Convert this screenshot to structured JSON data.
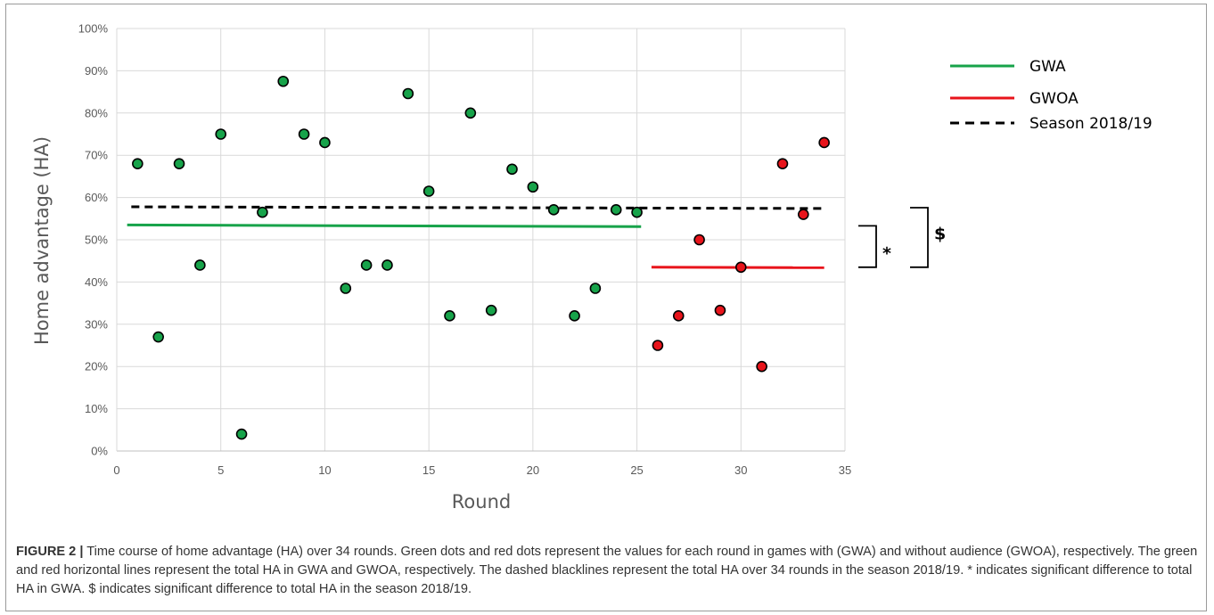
{
  "chart_data": {
    "type": "scatter",
    "xlabel": "Round",
    "ylabel": "Home advantage (HA)",
    "xlim": [
      0,
      35
    ],
    "ylim": [
      0,
      100
    ],
    "x_ticks": [
      0,
      5,
      10,
      15,
      20,
      25,
      30,
      35
    ],
    "y_ticks": [
      "0%",
      "10%",
      "20%",
      "30%",
      "40%",
      "50%",
      "60%",
      "70%",
      "80%",
      "90%",
      "100%"
    ],
    "y_tick_values": [
      0,
      10,
      20,
      30,
      40,
      50,
      60,
      70,
      80,
      90,
      100
    ],
    "grid": "vertical and horizontal",
    "legend_position": "top-right",
    "series": [
      {
        "name": "GWA",
        "color": "#17a34a",
        "points": [
          {
            "x": 1,
            "y": 68
          },
          {
            "x": 2,
            "y": 27
          },
          {
            "x": 3,
            "y": 68
          },
          {
            "x": 4,
            "y": 44
          },
          {
            "x": 5,
            "y": 75
          },
          {
            "x": 6,
            "y": 4
          },
          {
            "x": 7,
            "y": 56.5
          },
          {
            "x": 8,
            "y": 87.5
          },
          {
            "x": 9,
            "y": 75
          },
          {
            "x": 10,
            "y": 73
          },
          {
            "x": 11,
            "y": 38.5
          },
          {
            "x": 12,
            "y": 44
          },
          {
            "x": 13,
            "y": 44
          },
          {
            "x": 14,
            "y": 84.6
          },
          {
            "x": 15,
            "y": 61.5
          },
          {
            "x": 16,
            "y": 32
          },
          {
            "x": 17,
            "y": 80
          },
          {
            "x": 18,
            "y": 33.3
          },
          {
            "x": 19,
            "y": 66.7
          },
          {
            "x": 20,
            "y": 62.5
          },
          {
            "x": 21,
            "y": 57.1
          },
          {
            "x": 22,
            "y": 32
          },
          {
            "x": 23,
            "y": 38.5
          },
          {
            "x": 24,
            "y": 57.1
          },
          {
            "x": 25,
            "y": 56.5
          }
        ]
      },
      {
        "name": "GWOA",
        "color": "#e8141b",
        "points": [
          {
            "x": 26,
            "y": 25
          },
          {
            "x": 27,
            "y": 32
          },
          {
            "x": 28,
            "y": 50
          },
          {
            "x": 29,
            "y": 33.3
          },
          {
            "x": 30,
            "y": 43.5
          },
          {
            "x": 31,
            "y": 20
          },
          {
            "x": 32,
            "y": 68
          },
          {
            "x": 33,
            "y": 56
          },
          {
            "x": 34,
            "y": 73
          }
        ]
      }
    ],
    "reference_lines": [
      {
        "name": "GWA",
        "style": "solid",
        "color": "#17a34a",
        "x_start": 0.5,
        "x_end": 25.2,
        "y_start": 53.5,
        "y_end": 53.1
      },
      {
        "name": "GWOA",
        "style": "solid",
        "color": "#e8141b",
        "x_start": 25.7,
        "x_end": 34,
        "y_start": 43.5,
        "y_end": 43.4
      },
      {
        "name": "Season 2018/19",
        "style": "dashed",
        "color": "#000000",
        "x_start": 0.7,
        "x_end": 34.1,
        "y_start": 57.8,
        "y_end": 57.4
      }
    ],
    "legend": [
      {
        "label": "GWA",
        "color": "#17a34a",
        "style": "solid"
      },
      {
        "label": "GWOA",
        "color": "#e8141b",
        "style": "solid"
      },
      {
        "label": "Season 2018/19",
        "color": "#000000",
        "style": "dashed"
      }
    ],
    "significance_markers": [
      {
        "symbol": "*",
        "from_y": 53.3,
        "to_y": 43.5
      },
      {
        "symbol": "$",
        "from_y": 57.6,
        "to_y": 43.5
      }
    ]
  },
  "caption": {
    "label": "FIGURE 2 |",
    "text": " Time course of home advantage (HA) over 34 rounds. Green dots and red dots represent the values for each round in games with (GWA) and without audience (GWOA), respectively. The green and red horizontal lines represent the total HA in GWA and GWOA, respectively. The dashed blacklines represent the total HA over 34 rounds in the season 2018/19. * indicates significant difference to total HA in GWA. $ indicates significant difference to total HA in the season 2018/19."
  }
}
